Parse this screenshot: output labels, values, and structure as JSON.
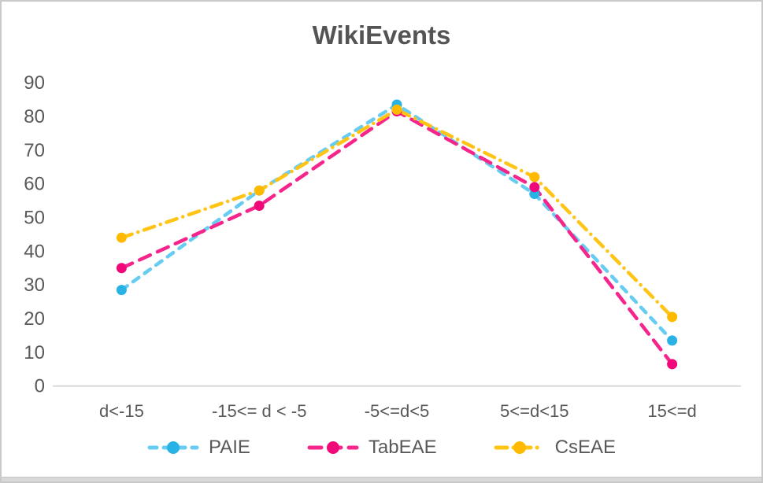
{
  "window": {
    "background": "#ffffff",
    "border_color": "#c9c9c9"
  },
  "chart_data": {
    "type": "line",
    "title": "WikiEvents",
    "categories": [
      "d<-15",
      "-15<= d < -5",
      "-5<=d<5",
      "5<=d<15",
      "15<=d"
    ],
    "series": [
      {
        "name": "PAIE",
        "color": "#66CCF1",
        "marker_color": "#29B2E5",
        "dash": "dashed",
        "values": [
          28.5,
          58,
          83.5,
          57,
          13.5
        ]
      },
      {
        "name": "TabEAE",
        "color": "#F5258C",
        "marker_color": "#F0087A",
        "dash": "long-dash",
        "values": [
          35,
          53.5,
          81.5,
          59,
          6.5
        ]
      },
      {
        "name": "CsEAE",
        "color": "#FFC415",
        "marker_color": "#FFBA00",
        "dash": "dash-dot",
        "values": [
          44,
          58,
          82,
          62,
          20.5
        ]
      }
    ],
    "xlabel": "",
    "ylabel": "",
    "ylim": [
      0,
      90
    ],
    "yticks": [
      0,
      10,
      20,
      30,
      40,
      50,
      60,
      70,
      80,
      90
    ],
    "grid": false,
    "legend_position": "bottom",
    "axis_color": "#d9d9d9",
    "text_color": "#595959"
  }
}
